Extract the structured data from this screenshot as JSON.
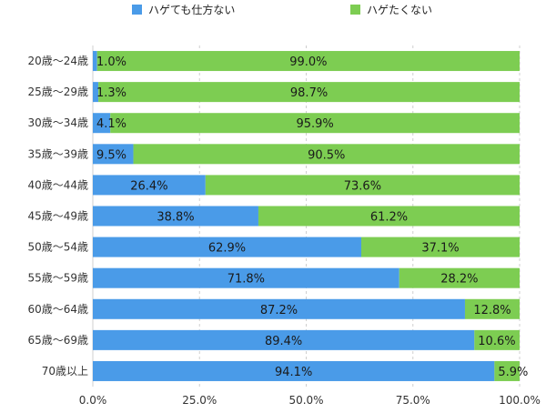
{
  "chart_data": {
    "type": "bar",
    "orientation": "horizontal",
    "stacked": true,
    "percent_stacked": true,
    "categories": [
      "20歳〜24歳",
      "25歳〜29歳",
      "30歳〜34歳",
      "35歳〜39歳",
      "40歳〜44歳",
      "45歳〜49歳",
      "50歳〜54歳",
      "55歳〜59歳",
      "60歳〜64歳",
      "65歳〜69歳",
      "70歳以上"
    ],
    "series": [
      {
        "name": "ハゲても仕方ない",
        "color": "#4a9be8",
        "values": [
          1.0,
          1.3,
          4.1,
          9.5,
          26.4,
          38.8,
          62.9,
          71.8,
          87.2,
          89.4,
          94.1
        ],
        "labels": [
          "1.0%",
          "1.3%",
          "4.1%",
          "9.5%",
          "26.4%",
          "38.8%",
          "62.9%",
          "71.8%",
          "87.2%",
          "89.4%",
          "94.1%"
        ]
      },
      {
        "name": "ハゲたくない",
        "color": "#7dcd52",
        "values": [
          99.0,
          98.7,
          95.9,
          90.5,
          73.6,
          61.2,
          37.1,
          28.2,
          12.8,
          10.6,
          5.9
        ],
        "labels": [
          "99.0%",
          "98.7%",
          "95.9%",
          "90.5%",
          "73.6%",
          "61.2%",
          "37.1%",
          "28.2%",
          "12.8%",
          "10.6%",
          "5.9%"
        ]
      }
    ],
    "xlim": [
      0,
      100
    ],
    "x_ticks": [
      0,
      25,
      50,
      75,
      100
    ],
    "x_tick_labels": [
      "0.0%",
      "25.0%",
      "50.0%",
      "75.0%",
      "100.0%"
    ],
    "grid": true,
    "legend_position": "top",
    "title": "",
    "xlabel": "",
    "ylabel": ""
  }
}
